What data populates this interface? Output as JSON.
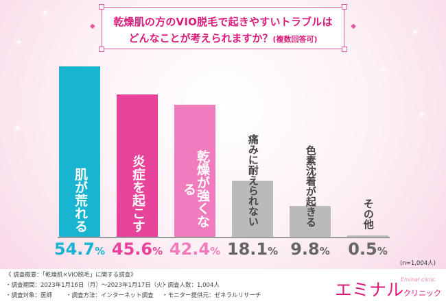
{
  "title": {
    "line1": "乾燥肌の方のVIO脱毛で起きやすいトラブルは",
    "line2": "どんなことが考えられますか？",
    "note": "(複数回答可)"
  },
  "sample_size": "(n=1,004人)",
  "colors": [
    "#19b4d0",
    "#e8439b",
    "#f07cbd",
    "#bababa",
    "#bababa",
    "#bababa"
  ],
  "chart_data": {
    "type": "bar",
    "title": "乾燥肌の方のVIO脱毛で起きやすいトラブルはどんなことが考えられますか？(複数回答可)",
    "categories": [
      "肌が荒れる",
      "炎症を起こす",
      "乾燥が強くなる",
      "痛みに耐えられない",
      "色素沈着が起きる",
      "その他"
    ],
    "values": [
      54.7,
      45.6,
      42.4,
      18.1,
      9.8,
      0.5
    ],
    "value_labels": [
      {
        "num": "54.7",
        "pct": "%"
      },
      {
        "num": "45.6",
        "pct": "%"
      },
      {
        "num": "42.4",
        "pct": "%"
      },
      {
        "num": "18.1",
        "pct": "%"
      },
      {
        "num": "9.8",
        "pct": "%"
      },
      {
        "num": "0.5",
        "pct": "%"
      }
    ],
    "unit": "%",
    "ylim": [
      0,
      54.7
    ],
    "xlabel": "",
    "ylabel": ""
  },
  "survey": {
    "heading": "《 調査概要：「乾燥肌×VIO脱毛」に関する調査》",
    "period": "・調査期間：2023年1月16日（月）〜2023年1月17日（火）",
    "respondents": "・調査人数：1,004人",
    "target": "・調査対象：医師",
    "method": "・調査方法：インターネット調査",
    "provider": "・モニター提供元：ゼネラルリサーチ"
  },
  "logo": {
    "main": "エミナル",
    "sub": "クリニック",
    "english": "Eminal clinic"
  }
}
